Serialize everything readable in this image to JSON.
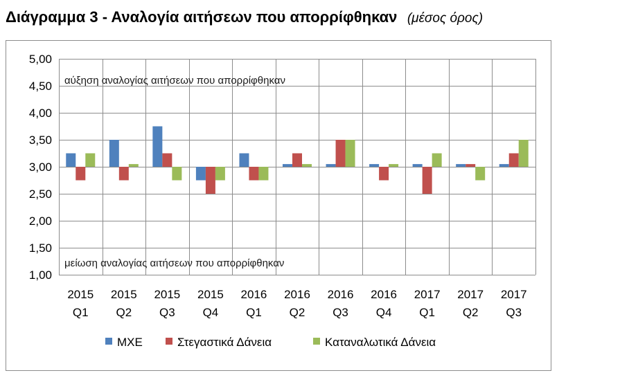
{
  "title": "Διάγραμμα 3 - Αναλογία αιτήσεων που απορρίφθηκαν",
  "subtitle": "(μέσος όρος)",
  "chart_data": {
    "type": "bar",
    "categories": [
      [
        "2015",
        "Q1"
      ],
      [
        "2015",
        "Q2"
      ],
      [
        "2015",
        "Q3"
      ],
      [
        "2015",
        "Q4"
      ],
      [
        "2016",
        "Q1"
      ],
      [
        "2016",
        "Q2"
      ],
      [
        "2016",
        "Q3"
      ],
      [
        "2016",
        "Q4"
      ],
      [
        "2017",
        "Q1"
      ],
      [
        "2017",
        "Q2"
      ],
      [
        "2017",
        "Q3"
      ]
    ],
    "series": [
      {
        "name": "ΜΧΕ",
        "color": "#4f81bd",
        "values": [
          3.25,
          3.5,
          3.75,
          2.75,
          3.25,
          3.05,
          3.05,
          3.05,
          3.05,
          3.05,
          3.05
        ]
      },
      {
        "name": "Στεγαστικά Δάνεια",
        "color": "#c0504d",
        "values": [
          2.75,
          2.75,
          3.25,
          2.5,
          2.75,
          3.25,
          3.5,
          2.75,
          2.5,
          3.05,
          3.25
        ]
      },
      {
        "name": "Καταναλωτικά Δάνεια",
        "color": "#9bbb59",
        "values": [
          3.25,
          3.05,
          2.75,
          2.75,
          2.75,
          3.05,
          3.5,
          3.05,
          3.25,
          2.75,
          3.5
        ]
      }
    ],
    "baseline": 3.0,
    "ylim": [
      1.0,
      5.0
    ],
    "yticks": [
      "1,00",
      "1,50",
      "2,00",
      "2,50",
      "3,00",
      "3,50",
      "4,00",
      "4,50",
      "5,00"
    ],
    "grid": true,
    "legend_position": "bottom",
    "annotations": {
      "top": "αύξηση αναλογίας αιτήσεων που απορρίφθηκαν",
      "bottom": "μείωση αναλογίας αιτήσεων που απορρίφθηκαν"
    }
  }
}
